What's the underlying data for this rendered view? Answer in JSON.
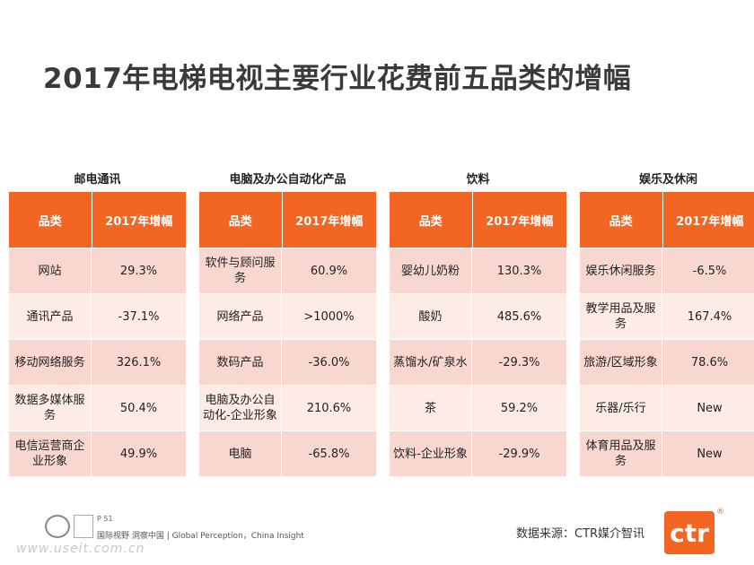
{
  "title": "2017年电梯电视主要行业花费前五品类的增幅",
  "header": {
    "col1": "品类",
    "col2": "2017年增幅"
  },
  "tables": [
    {
      "name": "邮电通讯",
      "rows": [
        [
          "网站",
          "29.3%"
        ],
        [
          "通讯产品",
          "-37.1%"
        ],
        [
          "移动网络服务",
          "326.1%"
        ],
        [
          "数据多媒体服务",
          "50.4%"
        ],
        [
          "电信运营商企业形象",
          "49.9%"
        ]
      ]
    },
    {
      "name": "电脑及办公自动化产品",
      "rows": [
        [
          "软件与顾问服务",
          "60.9%"
        ],
        [
          "网络产品",
          ">1000%"
        ],
        [
          "数码产品",
          "-36.0%"
        ],
        [
          "电脑及办公自动化-企业形象",
          "210.6%"
        ],
        [
          "电脑",
          "-65.8%"
        ]
      ]
    },
    {
      "name": "饮料",
      "rows": [
        [
          "婴幼儿奶粉",
          "130.3%"
        ],
        [
          "酸奶",
          "485.6%"
        ],
        [
          "蒸馏水/矿泉水",
          "-29.3%"
        ],
        [
          "茶",
          "59.2%"
        ],
        [
          "饮料-企业形象",
          "-29.9%"
        ]
      ]
    },
    {
      "name": "娱乐及休闲",
      "rows": [
        [
          "娱乐休闲服务",
          "-6.5%"
        ],
        [
          "教学用品及服务",
          "167.4%"
        ],
        [
          "旅游/区域形象",
          "78.6%"
        ],
        [
          "乐器/乐行",
          "New"
        ],
        [
          "体育用品及服务",
          "New"
        ]
      ]
    }
  ],
  "source": "数据来源：CTR媒介智讯",
  "logo_text": "ctr",
  "logo_reg": "®",
  "page_number": "P 51",
  "footer_tagline": "国际视野  洞察中国 |  Global Perception，China Insight",
  "watermark_url": "www.useit.com.cn",
  "colors": {
    "accent": "#f26522",
    "row_odd": "#f9d7d1",
    "row_even": "#fdebe6"
  }
}
